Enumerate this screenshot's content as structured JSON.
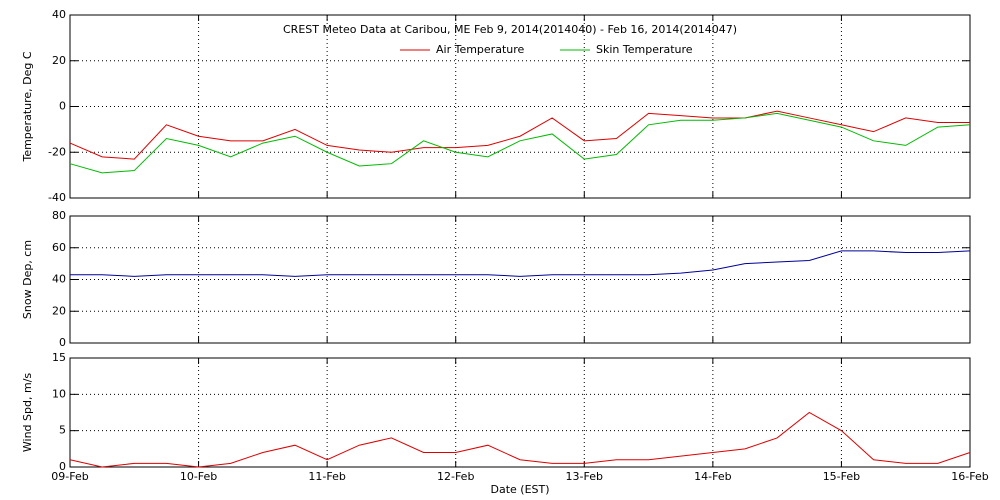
{
  "chart_data": [
    {
      "type": "line",
      "title": "CREST Meteo Data at Caribou, ME   Feb  9, 2014(2014040) - Feb 16, 2014(2014047)",
      "ylabel": "Temperature, Deg C",
      "ylim": [
        -40,
        40
      ],
      "yticks": [
        -40,
        -20,
        0,
        20,
        40
      ],
      "grid": true,
      "legend": "top",
      "series": [
        {
          "name": "Air Temperature",
          "color": "#dd0000",
          "values": [
            -16,
            -22,
            -23,
            -8,
            -13,
            -15,
            -15,
            -10,
            -17,
            -19,
            -20,
            -18,
            -18,
            -17,
            -13,
            -5,
            -15,
            -14,
            -3,
            -4,
            -5,
            -5,
            -2,
            -5,
            -8,
            -11,
            -5,
            -7,
            -7
          ]
        },
        {
          "name": "Skin Temperature",
          "color": "#00bb00",
          "values": [
            -25,
            -29,
            -28,
            -14,
            -17,
            -22,
            -16,
            -13,
            -20,
            -26,
            -25,
            -15,
            -20,
            -22,
            -15,
            -12,
            -23,
            -21,
            -8,
            -6,
            -6,
            -5,
            -3,
            -6,
            -9,
            -15,
            -17,
            -9,
            -8
          ]
        }
      ]
    },
    {
      "type": "line",
      "ylabel": "Snow Dep, cm",
      "ylim": [
        0,
        80
      ],
      "yticks": [
        0,
        20,
        40,
        60,
        80
      ],
      "grid": true,
      "series": [
        {
          "color": "#000099",
          "values": [
            43,
            43,
            42,
            43,
            43,
            43,
            43,
            42,
            43,
            43,
            43,
            43,
            43,
            43,
            42,
            43,
            43,
            43,
            43,
            44,
            46,
            50,
            51,
            52,
            58,
            58,
            57,
            57,
            58
          ]
        }
      ]
    },
    {
      "type": "line",
      "ylabel": "Wind Spd, m/s",
      "xlabel": "Date (EST)",
      "ylim": [
        0,
        15
      ],
      "yticks": [
        0,
        5,
        10,
        15
      ],
      "grid": true,
      "categories": [
        "09-Feb",
        null,
        null,
        null,
        "10-Feb",
        null,
        null,
        null,
        "11-Feb",
        null,
        null,
        null,
        "12-Feb",
        null,
        null,
        null,
        "13-Feb",
        null,
        null,
        null,
        "14-Feb",
        null,
        null,
        null,
        "15-Feb",
        null,
        null,
        null,
        "16-Feb"
      ],
      "series": [
        {
          "color": "#dd0000",
          "values": [
            1,
            0,
            0.5,
            0.5,
            0,
            0.5,
            2,
            3,
            1,
            3,
            4,
            2,
            2,
            3,
            1,
            0.5,
            0.5,
            1,
            1,
            1.5,
            2,
            2.5,
            4,
            7.5,
            5,
            1,
            0.5,
            0.5,
            2
          ]
        }
      ]
    }
  ]
}
